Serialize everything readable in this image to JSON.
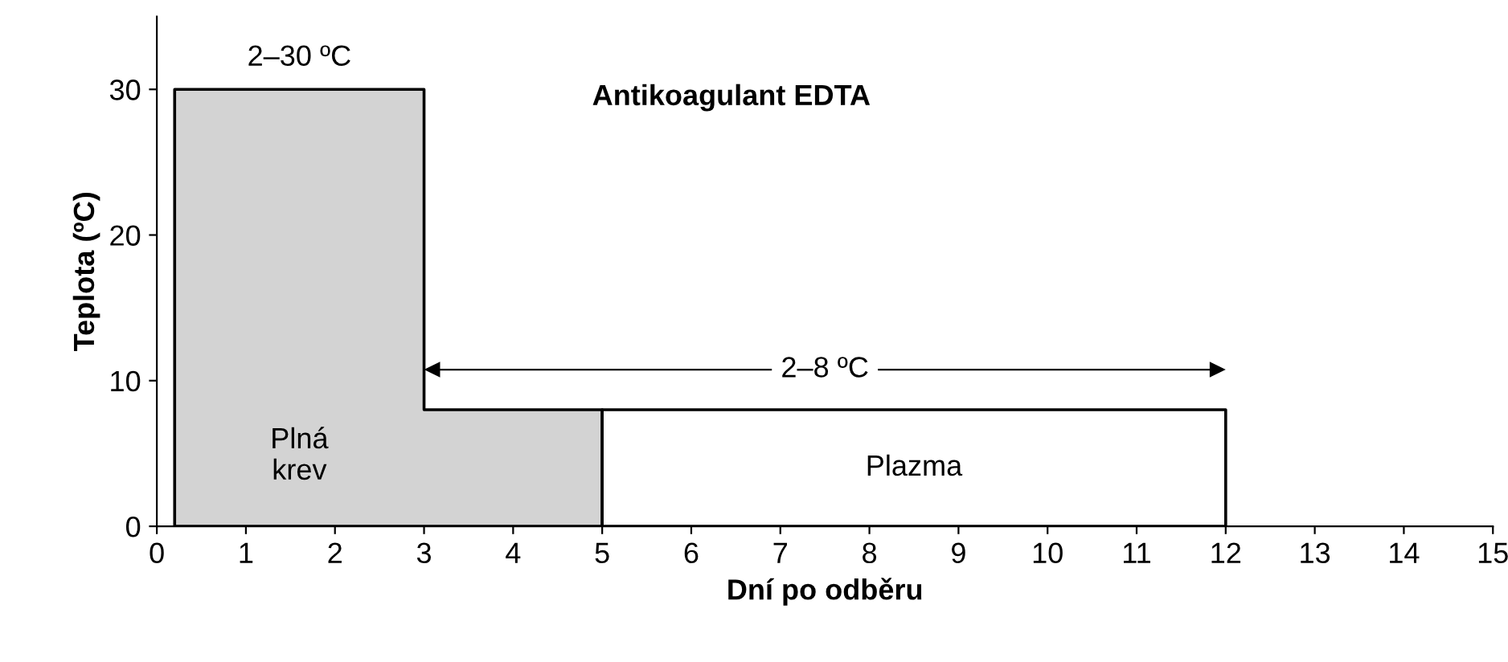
{
  "chart_data": {
    "type": "area",
    "title": "Antikoagulant EDTA",
    "xlabel": "Dní po odběru",
    "ylabel": "Teplota (ºC)",
    "series": [
      {
        "name": "Plná krev",
        "color": "#d3d3d3",
        "x": [
          0.2,
          0.2,
          3,
          3,
          5,
          5
        ],
        "values": [
          0,
          30,
          30,
          8,
          8,
          0
        ]
      },
      {
        "name": "Plazma",
        "color": "#ffffff",
        "x": [
          5,
          5,
          12,
          12
        ],
        "values": [
          0,
          8,
          8,
          0
        ]
      }
    ],
    "annotations": [
      "2–30 ºC",
      "2–8 ºC"
    ],
    "xlim": [
      0,
      15
    ],
    "ylim": [
      0,
      35
    ],
    "xticks": [
      0,
      1,
      2,
      3,
      4,
      5,
      6,
      7,
      8,
      9,
      10,
      11,
      12,
      13,
      14,
      15
    ],
    "yticks": [
      0,
      10,
      20,
      30
    ],
    "grid": false,
    "legend": false
  }
}
